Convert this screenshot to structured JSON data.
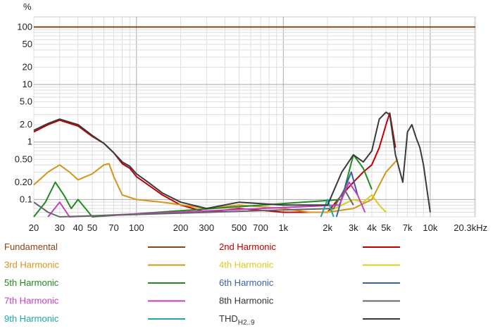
{
  "chart_data": {
    "type": "line",
    "title": "",
    "xlabel": "",
    "ylabel": "%",
    "xscale": "log",
    "yscale": "log",
    "xlim": [
      20,
      20300
    ],
    "ylim": [
      0.05,
      150
    ],
    "grid": true,
    "x_tick_labels": [
      "20",
      "30",
      "40",
      "50",
      "70",
      "100",
      "200",
      "300",
      "500",
      "700",
      "1k",
      "2k",
      "3k",
      "4k",
      "5k",
      "7k",
      "10k",
      "20.3kHz"
    ],
    "x_tick_values": [
      20,
      30,
      40,
      50,
      70,
      100,
      200,
      300,
      500,
      700,
      1000,
      2000,
      3000,
      4000,
      5000,
      7000,
      10000,
      20300
    ],
    "y_tick_labels": [
      "100",
      "50",
      "20",
      "10",
      "5.0",
      "2.0",
      "1",
      "0.50",
      "0.20",
      "0.1"
    ],
    "y_tick_values": [
      100,
      50,
      20,
      10,
      5,
      2,
      1,
      0.5,
      0.2,
      0.1
    ],
    "legend_placement": "bottom",
    "series": [
      {
        "name": "Fundamental",
        "color": "#8b4513",
        "x": [
          20,
          20300
        ],
        "y": [
          100,
          100
        ]
      },
      {
        "name": "2nd Harmonic",
        "color": "#c00000",
        "x": [
          20,
          25,
          30,
          40,
          50,
          60,
          70,
          80,
          90,
          100,
          120,
          150,
          200,
          300,
          500,
          1000,
          2000,
          2500,
          3000,
          3500,
          4000,
          4500,
          5000,
          5300,
          5800
        ],
        "y": [
          1.5,
          2.0,
          2.4,
          1.9,
          1.25,
          0.95,
          0.65,
          0.42,
          0.35,
          0.25,
          0.18,
          0.12,
          0.08,
          0.06,
          0.07,
          0.06,
          0.06,
          0.12,
          0.2,
          0.3,
          0.4,
          0.8,
          2.0,
          3.2,
          0.8
        ]
      },
      {
        "name": "3rd Harmonic",
        "color": "#d4951a",
        "x": [
          20,
          25,
          30,
          35,
          40,
          50,
          60,
          65,
          70,
          80,
          100,
          150,
          300,
          500,
          1000,
          1500,
          2000,
          3000,
          4000,
          5000,
          6000
        ],
        "y": [
          0.18,
          0.3,
          0.4,
          0.3,
          0.22,
          0.28,
          0.4,
          0.42,
          0.25,
          0.12,
          0.1,
          0.09,
          0.07,
          0.08,
          0.07,
          0.06,
          0.06,
          0.07,
          0.1,
          0.3,
          0.5
        ]
      },
      {
        "name": "4th Harmonic",
        "color": "#d8cc1e",
        "x": [
          2000,
          2500,
          3000,
          3500,
          4000,
          4500,
          5000
        ],
        "y": [
          0.06,
          0.08,
          0.1,
          0.09,
          0.12,
          0.08,
          0.06
        ]
      },
      {
        "name": "5th Harmonic",
        "color": "#1f8a1f",
        "x": [
          20,
          24,
          28,
          32,
          36,
          40,
          45,
          50,
          2500,
          3000,
          3500,
          4000
        ],
        "y": [
          0.05,
          0.09,
          0.2,
          0.12,
          0.07,
          0.1,
          0.07,
          0.05,
          0.1,
          0.6,
          0.35,
          0.15
        ]
      },
      {
        "name": "6th Harmonic",
        "color": "#3a5fa8",
        "x": [
          2300,
          2600,
          2900,
          3200
        ],
        "y": [
          0.05,
          0.15,
          0.3,
          0.12
        ]
      },
      {
        "name": "7th Harmonic",
        "color": "#c040c0",
        "x": [
          25,
          30,
          35,
          2400,
          2800,
          3200,
          3600
        ],
        "y": [
          0.05,
          0.09,
          0.05,
          0.08,
          0.2,
          0.12,
          0.06
        ]
      },
      {
        "name": "8th Harmonic",
        "color": "#666666",
        "x": [
          20,
          25,
          30,
          2200,
          2600,
          3000
        ],
        "y": [
          0.09,
          0.06,
          0.05,
          0.07,
          0.15,
          0.08
        ]
      },
      {
        "name": "9th Harmonic",
        "color": "#1aa8a8",
        "x": [
          1800,
          2000,
          2200
        ],
        "y": [
          0.05,
          0.1,
          0.05
        ]
      },
      {
        "name": "THD",
        "name_sub": "H2..9",
        "color": "#3a3a3a",
        "x": [
          20,
          25,
          30,
          40,
          50,
          60,
          70,
          80,
          90,
          100,
          120,
          150,
          200,
          300,
          500,
          1000,
          2000,
          2500,
          3000,
          3500,
          4000,
          4500,
          5000,
          5300,
          5800,
          6500,
          7000,
          7500,
          8000,
          8500,
          9000,
          9500,
          10000
        ],
        "y": [
          1.6,
          2.1,
          2.5,
          2.0,
          1.3,
          0.95,
          0.65,
          0.45,
          0.38,
          0.28,
          0.2,
          0.13,
          0.09,
          0.07,
          0.09,
          0.08,
          0.08,
          0.3,
          0.6,
          0.45,
          0.7,
          2.5,
          3.3,
          3.0,
          0.6,
          0.2,
          1.5,
          2.0,
          1.2,
          0.8,
          0.4,
          0.15,
          0.06
        ]
      }
    ]
  }
}
